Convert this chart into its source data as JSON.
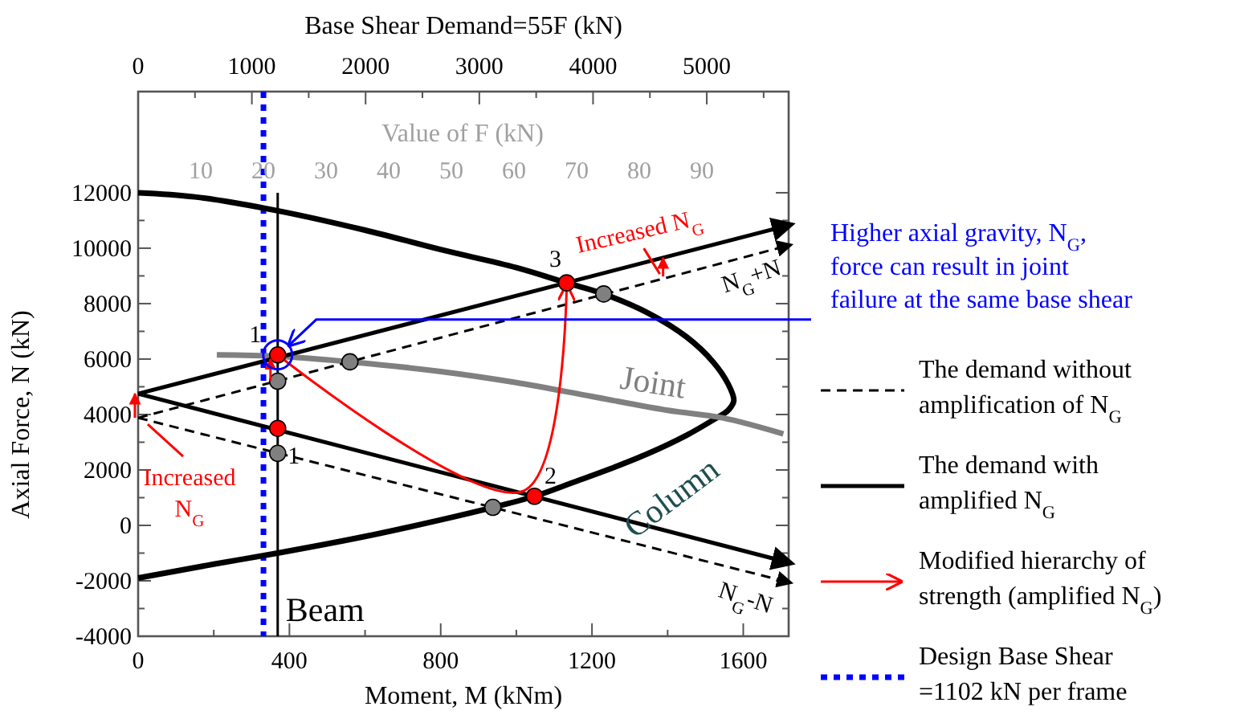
{
  "chart_data": {
    "type": "line",
    "xlabel": "Moment, M (kNm)",
    "ylabel": "Axial Force, N (kN)",
    "x2label": "Base Shear Demand=55F (kN)",
    "xlim": [
      0,
      1720
    ],
    "ylim": [
      -4000,
      15650
    ],
    "x2lim": [
      0,
      5720
    ],
    "xticks": [
      0,
      {
        "value": 200,
        "label": null
      },
      400,
      {
        "value": 600,
        "label": null
      },
      800,
      {
        "value": 1000,
        "label": null
      },
      1200,
      {
        "value": 1400,
        "label": null
      },
      1600
    ],
    "yticks": [
      -4000,
      {
        "value": -3000,
        "label": null
      },
      -2000,
      {
        "value": -1000,
        "label": null
      },
      0,
      {
        "value": 1000,
        "label": null
      },
      2000,
      {
        "value": 3000,
        "label": null
      },
      4000,
      {
        "value": 5000,
        "label": null
      },
      6000,
      {
        "value": 7000,
        "label": null
      },
      8000,
      {
        "value": 9000,
        "label": null
      },
      10000,
      {
        "value": 11000,
        "label": null
      },
      12000
    ],
    "x2ticks": [
      0,
      {
        "value": 500,
        "label": null
      },
      1000,
      {
        "value": 1500,
        "label": null
      },
      2000,
      {
        "value": 2500,
        "label": null
      },
      3000,
      {
        "value": 3500,
        "label": null
      },
      4000,
      {
        "value": 4500,
        "label": null
      },
      5000,
      {
        "value": 5500,
        "label": null
      }
    ],
    "grid": false,
    "legend": "right",
    "series": [
      {
        "color": "#000000",
        "x": [
          0,
          150,
          369,
          600,
          800,
          1000,
          1133,
          1231,
          1350,
          1450,
          1520,
          1560,
          1575,
          1560,
          1520,
          1450,
          1350,
          1250,
          1150,
          1048,
          938,
          800,
          600,
          369,
          200,
          0
        ],
        "values": [
          12000,
          11850,
          11350,
          10650,
          9950,
          9300,
          8750,
          8350,
          7650,
          6800,
          5900,
          5100,
          4500,
          4150,
          3800,
          3250,
          2600,
          2050,
          1550,
          1050,
          650,
          200,
          -400,
          -1000,
          -1400,
          -1900
        ]
      },
      {
        "color": "#808080",
        "x": [
          208,
          369,
          560,
          800,
          1000,
          1200,
          1400,
          1545,
          1706
        ],
        "values": [
          6150,
          6100,
          5900,
          5550,
          5150,
          4650,
          4150,
          3880,
          3300
        ]
      },
      {
        "color": "#000000",
        "x": [
          369,
          369
        ],
        "values": [
          -4000,
          12000
        ]
      },
      {
        "name": "The demand without amplification of N$_{G}$",
        "color": "#000000",
        "line_style": "dashed",
        "x": [
          0,
          1720
        ],
        "values": [
          3880,
          10100
        ]
      },
      {
        "color": "#000000",
        "line_style": "dashed",
        "x": [
          0,
          1720
        ],
        "values": [
          3880,
          -2050
        ]
      },
      {
        "name": "The demand with amplified N$_{G}$",
        "color": "#000000",
        "line_style": "solid",
        "x": [
          0,
          1720
        ],
        "values": [
          4750,
          10830
        ]
      },
      {
        "color": "#000000",
        "line_style": "solid",
        "x": [
          0,
          1720
        ],
        "values": [
          4750,
          -1340
        ]
      },
      {
        "name": "Modified hierarchy of strength (amplified N$_{G}$)",
        "color": "#ff0000",
        "x": [
          369,
          1020,
          1133
        ],
        "values": [
          6150,
          1250,
          8650
        ]
      },
      {
        "type": "scatter",
        "marker": "circle",
        "color": "#ff0000",
        "x": [
          369,
          369,
          1048,
          1133
        ],
        "values": [
          6150,
          3500,
          1050,
          8750
        ]
      },
      {
        "type": "scatter",
        "marker": "circle",
        "color": "#808080",
        "x": [
          369,
          369,
          560,
          938,
          1231
        ],
        "values": [
          5200,
          2600,
          5900,
          650,
          8350
        ]
      }
    ],
    "ref_lines": [
      {
        "axis": "x2",
        "value": 1102,
        "label": "Design Base Shear =1102 kN per frame",
        "color": "#0000ff",
        "line_style": "dotted"
      }
    ],
    "annotations": [
      {
        "text": "Column",
        "x": 1300,
        "y": 2300
      },
      {
        "text": "Joint",
        "x": 1200,
        "y": 4650
      },
      {
        "text": "Beam",
        "x": 369,
        "y": -3000
      },
      {
        "text": "N$_{G}$+N",
        "x": 1500,
        "y": 9540
      },
      {
        "text": "N$_{G}$-N",
        "x": 1600,
        "y": -1600
      },
      {
        "text": "1",
        "x": 369,
        "y": 6150
      },
      {
        "text": "1",
        "x": 369,
        "y": 3500
      },
      {
        "text": "2",
        "x": 1048,
        "y": 1050
      },
      {
        "text": "3",
        "x": 1133,
        "y": 8750
      },
      {
        "text": "Increased N$_{G}$",
        "x": 1388,
        "y": 9300
      },
      {
        "text": "Increased N$_{G}$",
        "x": 0,
        "y": 3880
      },
      "Higher axial gravity, N$_{G}$, force can result in joint failure at the same base shear",
      "Value of F (kN)",
      "10",
      "20",
      "30",
      "40",
      "50",
      "60",
      "70",
      "80",
      "90"
    ]
  }
}
